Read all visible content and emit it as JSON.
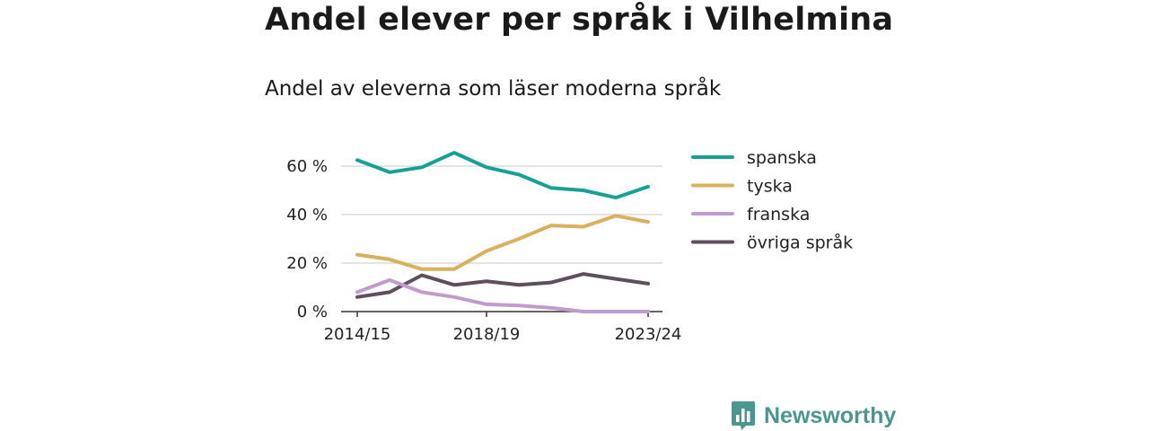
{
  "title": "Andel elever per språk i Vilhelmina",
  "subtitle": "Andel av eleverna som läser moderna språk",
  "brand": {
    "name": "Newsworthy",
    "logo_icon": "bar-chart-speech-bubble-icon",
    "color": "#4a9690"
  },
  "chart_data": {
    "type": "line",
    "x": [
      "2014/15",
      "2015/16",
      "2016/17",
      "2017/18",
      "2018/19",
      "2019/20",
      "2020/21",
      "2021/22",
      "2022/23",
      "2023/24"
    ],
    "x_tick_labels": [
      "2014/15",
      "2018/19",
      "2023/24"
    ],
    "y_ticks": [
      0,
      20,
      40,
      60
    ],
    "y_tick_labels": [
      "0 %",
      "20 %",
      "40 %",
      "60 %"
    ],
    "ylim": [
      0,
      70
    ],
    "grid": "horizontal",
    "legend_position": "right",
    "series": [
      {
        "name": "spanska",
        "color": "#16a096",
        "values": [
          62.5,
          57.5,
          59.5,
          65.5,
          59.5,
          56.5,
          51,
          50,
          47,
          51.5
        ]
      },
      {
        "name": "tyska",
        "color": "#d9b05c",
        "values": [
          23.5,
          21.5,
          17.5,
          17.5,
          25,
          30,
          35.5,
          35,
          39.5,
          37
        ]
      },
      {
        "name": "franska",
        "color": "#c09bcd",
        "values": [
          8,
          13,
          8,
          6,
          3,
          2.5,
          1.5,
          0,
          0,
          0
        ]
      },
      {
        "name": "övriga språk",
        "color": "#5f4e5e",
        "values": [
          6,
          8,
          15,
          11,
          12.5,
          11,
          12,
          15.5,
          13.5,
          11.5
        ]
      }
    ]
  }
}
